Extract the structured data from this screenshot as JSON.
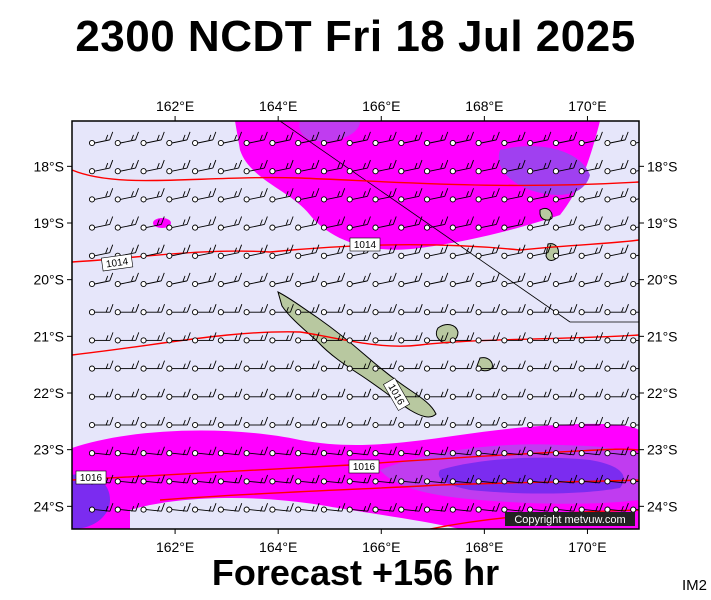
{
  "title": "2300 NCDT Fri 18 Jul 2025",
  "footer": "Forecast +156 hr",
  "image_code": "IM2",
  "copyright": "Copyright metvuw.com",
  "map": {
    "lon_range": [
      160.0,
      171.0
    ],
    "lat_range": [
      -24.4,
      -17.2
    ],
    "lon_ticks": [
      "162°E",
      "164°E",
      "166°E",
      "168°E",
      "170°E"
    ],
    "lat_ticks": [
      "18°S",
      "19°S",
      "20°S",
      "21°S",
      "22°S",
      "23°S",
      "24°S"
    ],
    "isobar_labels": [
      "1014",
      "1014",
      "1016",
      "1016",
      "1016"
    ],
    "colors": {
      "ocean": "#e6e6fa",
      "rain_light": "#ff00ff",
      "rain_mid": "#c03cf0",
      "rain_heavy": "#7b2cf0",
      "isobar": "#ff0000",
      "land": "#b8c8a0"
    }
  }
}
